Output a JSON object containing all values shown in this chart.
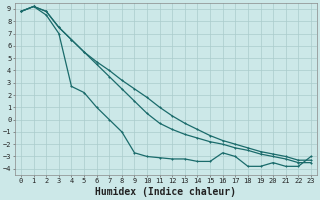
{
  "xlabel": "Humidex (Indice chaleur)",
  "bg_color": "#cce8e8",
  "grid_color": "#aacccc",
  "line_color": "#1a6b6b",
  "xlim": [
    -0.5,
    23.5
  ],
  "ylim": [
    -4.5,
    9.5
  ],
  "xticks": [
    0,
    1,
    2,
    3,
    4,
    5,
    6,
    7,
    8,
    9,
    10,
    11,
    12,
    13,
    14,
    15,
    16,
    17,
    18,
    19,
    20,
    21,
    22,
    23
  ],
  "yticks": [
    -4,
    -3,
    -2,
    -1,
    0,
    1,
    2,
    3,
    4,
    5,
    6,
    7,
    8,
    9
  ],
  "line1_x": [
    0,
    1,
    2,
    3,
    4,
    5,
    6,
    7,
    8,
    9,
    10,
    11,
    12,
    13,
    14,
    15,
    16,
    17,
    18,
    19,
    20,
    21,
    22,
    23
  ],
  "line1_y": [
    8.8,
    9.2,
    8.8,
    7.5,
    6.5,
    5.5,
    4.7,
    4.0,
    3.2,
    2.5,
    1.8,
    1.0,
    0.3,
    -0.3,
    -0.8,
    -1.3,
    -1.7,
    -2.0,
    -2.3,
    -2.6,
    -2.8,
    -3.0,
    -3.3,
    -3.3
  ],
  "line2_x": [
    0,
    1,
    2,
    3,
    4,
    5,
    6,
    7,
    8,
    9,
    10,
    11,
    12,
    13,
    14,
    15,
    16,
    17,
    18,
    19,
    20,
    21,
    22,
    23
  ],
  "line2_y": [
    8.8,
    9.2,
    8.8,
    7.5,
    6.5,
    5.5,
    4.5,
    3.5,
    2.5,
    1.5,
    0.5,
    -0.3,
    -0.8,
    -1.2,
    -1.5,
    -1.8,
    -2.0,
    -2.3,
    -2.5,
    -2.8,
    -3.0,
    -3.2,
    -3.5,
    -3.5
  ],
  "line3_x": [
    0,
    1,
    2,
    3,
    4,
    5,
    6,
    7,
    8,
    9,
    10,
    11,
    12,
    13,
    14,
    15,
    16,
    17,
    18,
    19,
    20,
    21,
    22,
    23
  ],
  "line3_y": [
    8.8,
    9.2,
    8.5,
    7.0,
    2.7,
    2.2,
    1.0,
    0.0,
    -1.0,
    -2.7,
    -3.0,
    -3.1,
    -3.2,
    -3.2,
    -3.4,
    -3.4,
    -2.7,
    -3.0,
    -3.8,
    -3.8,
    -3.5,
    -3.8,
    -3.8,
    -3.0
  ],
  "xlabel_fontsize": 7,
  "tick_fontsize": 5,
  "tick_label_color": "#222222",
  "spine_color": "#888888",
  "marker_size": 2.0,
  "line_width": 0.9
}
